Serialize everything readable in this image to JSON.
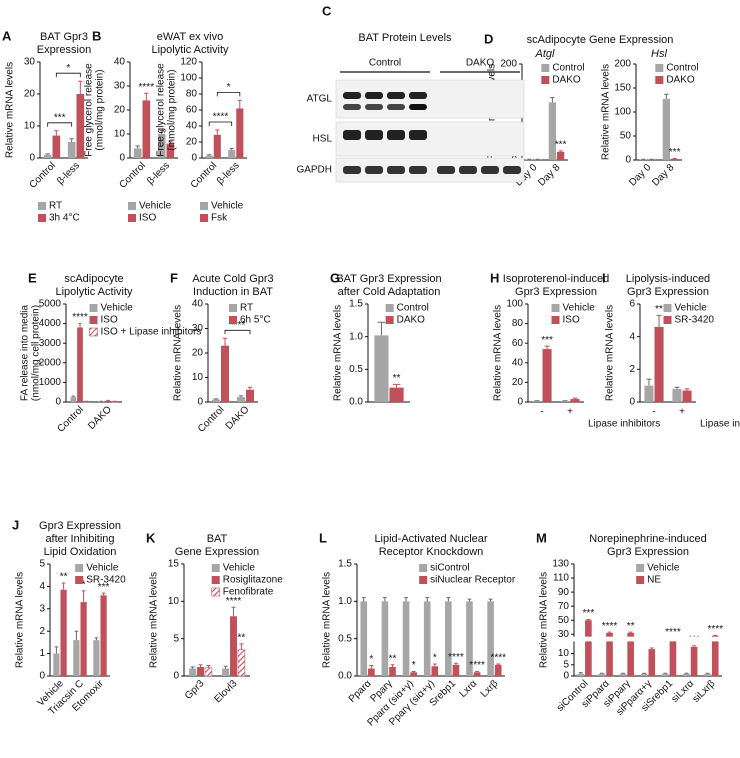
{
  "chart_data": [
    {
      "type": "bar",
      "panel": "A",
      "title": [
        "BAT Gpr3",
        "Expression"
      ],
      "ylabel": "Relative mRNA levels",
      "ylim": [
        0,
        30
      ],
      "yticks": [
        0,
        10,
        20,
        30
      ],
      "categories": [
        "Control",
        "β-less"
      ],
      "legend": "lower center",
      "series": [
        {
          "name": "RT",
          "color": "#a6a6a6",
          "values": [
            1,
            5
          ],
          "errors": [
            0.3,
            1
          ]
        },
        {
          "name": "3h 4°C",
          "color": "#c0505a",
          "values": [
            7,
            20
          ],
          "errors": [
            1.5,
            4
          ]
        }
      ],
      "brackets": [
        {
          "text": "***",
          "from": [
            0,
            0
          ],
          "to": [
            0,
            1
          ]
        },
        {
          "text": "*",
          "from": [
            1,
            0
          ],
          "to": [
            1,
            1
          ]
        }
      ]
    },
    {
      "type": "bar",
      "panel": "B",
      "title": [
        "eWAT ex vivo",
        "Lipolytic Activity"
      ],
      "ylabel": [
        "Free glycerol release",
        "(mmol/mg protein)"
      ],
      "ylim": [
        0,
        40
      ],
      "yticks": [
        0,
        10,
        20,
        30,
        40
      ],
      "categories": [
        "Control",
        "β-less"
      ],
      "legend": "lower center",
      "series": [
        {
          "name": "Vehicle",
          "color": "#a6a6a6",
          "values": [
            4,
            10
          ],
          "errors": [
            1,
            1.5
          ]
        },
        {
          "name": "ISO",
          "color": "#c0505a",
          "values": [
            24,
            6
          ],
          "errors": [
            3,
            1
          ],
          "labels": [
            "****",
            null
          ]
        }
      ]
    },
    {
      "type": "bar",
      "ylabel": [
        "Free glycerol release",
        "(mmol/mg protein)"
      ],
      "ylim": [
        0,
        120
      ],
      "yticks": [
        0,
        20,
        40,
        60,
        80,
        100,
        120
      ],
      "categories": [
        "Control",
        "β-less"
      ],
      "legend": "lower center",
      "series": [
        {
          "name": "Vehicle",
          "color": "#a6a6a6",
          "values": [
            3,
            10
          ],
          "errors": [
            1,
            2
          ]
        },
        {
          "name": "Fsk",
          "color": "#c0505a",
          "values": [
            29,
            62
          ],
          "errors": [
            6,
            10
          ]
        }
      ],
      "brackets": [
        {
          "text": "****",
          "from": [
            0,
            0
          ],
          "to": [
            0,
            1
          ]
        },
        {
          "text": "*",
          "from": [
            1,
            0
          ],
          "to": [
            1,
            1
          ]
        }
      ]
    },
    {
      "type": "bar",
      "panel": "D",
      "title": [
        "scAdipocyte Gene Expression"
      ],
      "subtitle": "Atgl",
      "ylabel": "Relative mRNA levels",
      "ylim": [
        0,
        200
      ],
      "yticks": [
        0,
        50,
        100,
        150,
        200
      ],
      "categories": [
        "Day 0",
        "Day 8"
      ],
      "legend": "upper right",
      "series": [
        {
          "name": "Control",
          "color": "#a6a6a6",
          "values": [
            1,
            120
          ],
          "errors": [
            0.5,
            10
          ]
        },
        {
          "name": "DAKO",
          "color": "#c0505a",
          "values": [
            1,
            17
          ],
          "errors": [
            0.5,
            2
          ],
          "labels": [
            null,
            "***"
          ]
        }
      ]
    },
    {
      "type": "bar",
      "subtitle": "Hsl",
      "ylabel": "Relative mRNA levels",
      "ylim": [
        0,
        200
      ],
      "yticks": [
        0,
        50,
        100,
        150,
        200
      ],
      "categories": [
        "Day 0",
        "Day 8"
      ],
      "legend": "upper right",
      "series": [
        {
          "name": "Control",
          "color": "#a6a6a6",
          "values": [
            1,
            127
          ],
          "errors": [
            0.5,
            10
          ]
        },
        {
          "name": "DAKO",
          "color": "#c0505a",
          "values": [
            1,
            2
          ],
          "errors": [
            0.5,
            1
          ],
          "labels": [
            null,
            "***"
          ]
        }
      ]
    },
    {
      "type": "bar",
      "panel": "E",
      "title": [
        "scAdipocyte",
        "Lipolytic Activity"
      ],
      "ylabel": [
        "FA release into media",
        "(nmol/mg cell protein)"
      ],
      "ylim": [
        0,
        5000
      ],
      "yticks": [
        0,
        1000,
        2000,
        3000,
        4000,
        5000
      ],
      "categories": [
        "Control",
        "DAKO"
      ],
      "legend": "upper right",
      "series": [
        {
          "name": "Vehicle",
          "color": "#a6a6a6",
          "values": [
            250,
            30
          ],
          "errors": [
            50,
            10
          ]
        },
        {
          "name": "ISO",
          "color": "#c0505a",
          "values": [
            3800,
            60
          ],
          "errors": [
            200,
            20
          ],
          "labels": [
            "****",
            null
          ]
        },
        {
          "name": "ISO + Lipase inhibitors",
          "color": "#c0505a",
          "hatch": true,
          "values": [
            30,
            30
          ],
          "errors": [
            10,
            10
          ]
        }
      ]
    },
    {
      "type": "bar",
      "panel": "F",
      "title": [
        "Acute Cold Gpr3",
        "Induction in BAT"
      ],
      "ylabel": "Relative mRNA levels",
      "ylim": [
        0,
        40
      ],
      "yticks": [
        0,
        10,
        20,
        30,
        40
      ],
      "categories": [
        "Control",
        "DAKO"
      ],
      "legend": "upper right",
      "series": [
        {
          "name": "RT",
          "color": "#a6a6a6",
          "values": [
            1,
            2
          ],
          "errors": [
            0.3,
            0.5
          ]
        },
        {
          "name": "6h 5°C",
          "color": "#c0505a",
          "values": [
            23,
            5
          ],
          "errors": [
            3,
            1
          ]
        }
      ],
      "brackets": [
        {
          "text": "****",
          "from": [
            1,
            0
          ],
          "to": [
            1,
            1
          ]
        }
      ]
    },
    {
      "type": "bar",
      "panel": "G",
      "title": [
        "BAT Gpr3 Expression",
        "after Cold Adaptation"
      ],
      "ylabel": "Relative mRNA levels",
      "ylim": [
        0,
        1.5
      ],
      "yticks": [
        {
          "value": 0,
          "label": "0.0"
        },
        {
          "value": 0.5,
          "label": "0.5"
        },
        {
          "value": 1,
          "label": "1.0"
        },
        {
          "value": 1.5,
          "label": "1.5"
        }
      ],
      "categories": [
        null
      ],
      "legend": "upper right",
      "series": [
        {
          "name": "Control",
          "color": "#a6a6a6",
          "values": [
            1.02
          ],
          "errors": [
            0.2
          ]
        },
        {
          "name": "DAKO",
          "color": "#c0505a",
          "values": [
            0.22
          ],
          "errors": [
            0.05
          ],
          "labels": [
            "**"
          ]
        }
      ]
    },
    {
      "type": "bar",
      "panel": "H",
      "title": [
        "Isoproterenol-induced",
        "Gpr3 Expression"
      ],
      "ylabel": "Relative mRNA levels",
      "ylim": [
        0,
        100
      ],
      "yticks": [
        0,
        20,
        40,
        60,
        80,
        100
      ],
      "categories": [
        "-",
        "+"
      ],
      "xlabel": "Lipase inhibitors",
      "legend": "upper right",
      "series": [
        {
          "name": "Vehicle",
          "color": "#a6a6a6",
          "values": [
            1,
            1
          ],
          "errors": [
            0.3,
            0.3
          ]
        },
        {
          "name": "ISO",
          "color": "#c0505a",
          "values": [
            54,
            3
          ],
          "errors": [
            3,
            1
          ],
          "labels": [
            "***",
            null
          ]
        }
      ]
    },
    {
      "type": "bar",
      "panel": "I",
      "title": [
        "Lipolysis-induced",
        "Gpr3 Expression"
      ],
      "ylabel": "Relative mRNA levels",
      "ylim": [
        0,
        6
      ],
      "yticks": [
        0,
        2,
        4,
        6
      ],
      "categories": [
        "-",
        "+"
      ],
      "xlabel": "Lipase inhibitors",
      "legend": "upper right",
      "series": [
        {
          "name": "Vehicle",
          "color": "#a6a6a6",
          "values": [
            1,
            0.8
          ],
          "errors": [
            0.4,
            0.1
          ]
        },
        {
          "name": "SR-3420",
          "color": "#c0505a",
          "values": [
            4.6,
            0.7
          ],
          "errors": [
            0.7,
            0.1
          ],
          "labels": [
            "**",
            null
          ]
        }
      ]
    },
    {
      "type": "bar",
      "panel": "J",
      "title": [
        "Gpr3 Expression",
        "after Inhibiting",
        "Lipid Oxidation"
      ],
      "ylabel": "Relative mRNA levels",
      "ylim": [
        0,
        5
      ],
      "yticks": [
        0,
        1,
        2,
        3,
        4,
        5
      ],
      "categories": [
        "Vehicle",
        "Triacsin C",
        "Etomoxir"
      ],
      "legend": "upper right",
      "series": [
        {
          "name": "Vehicle",
          "color": "#a6a6a6",
          "values": [
            1,
            1.6,
            1.6
          ],
          "errors": [
            0.3,
            0.4,
            0.1
          ]
        },
        {
          "name": "SR-3420",
          "color": "#c0505a",
          "values": [
            3.85,
            3.3,
            3.6
          ],
          "errors": [
            0.3,
            0.5,
            0.1
          ],
          "labels": [
            "**",
            "*",
            "***"
          ]
        }
      ]
    },
    {
      "type": "bar",
      "panel": "K",
      "title": [
        "BAT",
        "Gene Expression"
      ],
      "ylabel": "Relative mRNA levels",
      "ylim": [
        0,
        15
      ],
      "yticks": [
        0,
        5,
        10,
        15
      ],
      "categories": [
        "Gpr3",
        "Elovl3"
      ],
      "legend": "upper right",
      "series": [
        {
          "name": "Vehicle",
          "color": "#a6a6a6",
          "values": [
            1,
            1
          ],
          "errors": [
            0.2,
            0.3
          ]
        },
        {
          "name": "Rosiglitazone",
          "color": "#c0505a",
          "values": [
            1.2,
            8
          ],
          "errors": [
            0.3,
            1.2
          ],
          "labels": [
            null,
            "****"
          ]
        },
        {
          "name": "Fenofibrate",
          "color": "#c0505a",
          "hatch": true,
          "values": [
            1.1,
            3.5
          ],
          "errors": [
            0.3,
            0.8
          ],
          "labels": [
            null,
            "**"
          ]
        }
      ]
    },
    {
      "type": "bar",
      "panel": "L",
      "title": [
        "Lipid-Activated Nuclear",
        "Receptor Knockdown"
      ],
      "ylabel": "Relative mRNA levels",
      "ylim": [
        0,
        1.5
      ],
      "yticks": [
        {
          "value": 0,
          "label": "0.0"
        },
        {
          "value": 0.5,
          "label": "0.5"
        },
        {
          "value": 1,
          "label": "1.0"
        },
        {
          "value": 1.5,
          "label": "1.5"
        }
      ],
      "categories": [
        "Pparα",
        "Pparγ",
        "Pparα (siα+γ)",
        "Pparγ (siα+γ)",
        "Srebp1",
        "Lxrα",
        "Lxrβ"
      ],
      "legend": "upper right",
      "series": [
        {
          "name": "siControl",
          "color": "#a6a6a6",
          "values": [
            1,
            1,
            1,
            1,
            1,
            1,
            1
          ],
          "errors": [
            0.05,
            0.05,
            0.05,
            0.05,
            0.05,
            0.03,
            0.03
          ]
        },
        {
          "name": "siNuclear Receptor",
          "color": "#c0505a",
          "values": [
            0.1,
            0.12,
            0.05,
            0.13,
            0.15,
            0.05,
            0.15
          ],
          "errors": [
            0.04,
            0.03,
            0.01,
            0.03,
            0.02,
            0.01,
            0.01
          ],
          "labels": [
            "*",
            "**",
            "*",
            "*",
            "****",
            "****",
            "****"
          ]
        }
      ]
    },
    {
      "type": "bar",
      "panel": "M",
      "title": [
        "Norepinephrine-induced",
        "Gpr3 Expression"
      ],
      "ylabel": "Relative mRNA levels",
      "ylim": [
        0,
        130
      ],
      "ybreak": [
        15,
        28
      ],
      "yticks": [
        0,
        5,
        10,
        30,
        50,
        70,
        90,
        110,
        130
      ],
      "categories": [
        "siControl",
        "siPparα",
        "siPparγ",
        "siPparα+γ",
        "siSrebp1",
        "siLxrα",
        "siLxrβ"
      ],
      "legend": "upper right",
      "series": [
        {
          "name": "Vehicle",
          "color": "#a6a6a6",
          "values": [
            1,
            1,
            1,
            1,
            1,
            1,
            1
          ],
          "errors": [
            0.5,
            0.2,
            0.2,
            0.2,
            0.2,
            0.2,
            0.2
          ]
        },
        {
          "name": "NE",
          "color": "#c0505a",
          "values": [
            50,
            32,
            32,
            12,
            24,
            13,
            28
          ],
          "errors": [
            1,
            1,
            1,
            0.5,
            0.5,
            0.5,
            0.5
          ],
          "labels": [
            "***",
            "****",
            "**",
            "*",
            "****",
            "***",
            "****"
          ]
        }
      ]
    }
  ],
  "blot": {
    "panel": "C",
    "title": "BAT Protein Levels",
    "groups": [
      "Control",
      "DAKO"
    ],
    "rows": [
      "ATGL",
      "HSL",
      "GAPDH"
    ]
  }
}
